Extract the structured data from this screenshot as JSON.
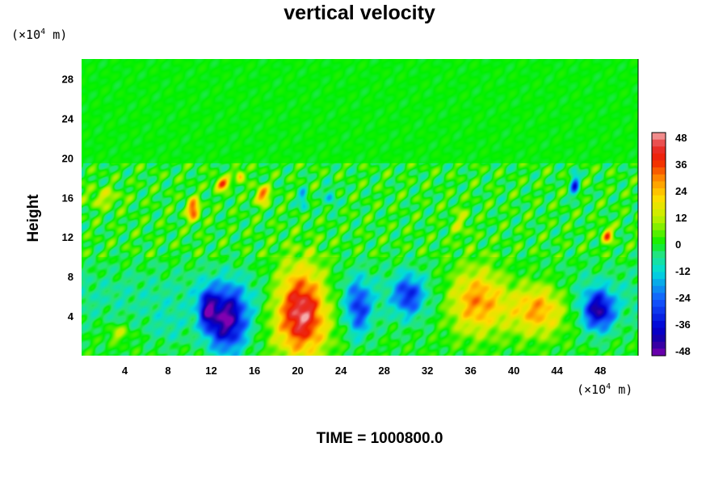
{
  "chart_data": {
    "type": "heatmap",
    "title": "vertical velocity",
    "ylabel": "Height",
    "x_unit": "m",
    "x_unit_base": "(×10",
    "x_unit_exp": "4",
    "y_unit": "m",
    "y_unit_base": "(×10",
    "y_unit_exp": "4",
    "footer": "TIME = 1000800.0",
    "xlim": [
      0,
      51.5
    ],
    "ylim": [
      0,
      30
    ],
    "x_ticks": [
      "4",
      "8",
      "12",
      "16",
      "20",
      "24",
      "28",
      "32",
      "36",
      "40",
      "44",
      "48"
    ],
    "y_ticks": [
      "4",
      "8",
      "12",
      "16",
      "20",
      "24",
      "28"
    ],
    "colorbar": {
      "range": [
        -48,
        48
      ],
      "labels": [
        "48",
        "36",
        "24",
        "12",
        "0",
        "-12",
        "-24",
        "-36",
        "-48"
      ]
    },
    "features": [
      {
        "x": 20.3,
        "y": 4.6,
        "sx": 2.4,
        "sy": 4.3,
        "v": 50
      },
      {
        "x": 13.4,
        "y": 3.6,
        "sx": 1.8,
        "sy": 3.2,
        "v": -44
      },
      {
        "x": 11.6,
        "y": 4.8,
        "sx": 0.8,
        "sy": 2.0,
        "v": -28
      },
      {
        "x": 25.6,
        "y": 4.8,
        "sx": 1.1,
        "sy": 2.8,
        "v": -25
      },
      {
        "x": 30.2,
        "y": 6.2,
        "sx": 1.3,
        "sy": 2.0,
        "v": -26
      },
      {
        "x": 36.6,
        "y": 5.6,
        "sx": 2.8,
        "sy": 3.2,
        "v": 33
      },
      {
        "x": 42.2,
        "y": 4.8,
        "sx": 2.6,
        "sy": 2.6,
        "v": 30
      },
      {
        "x": 47.8,
        "y": 4.6,
        "sx": 1.4,
        "sy": 2.0,
        "v": -38
      },
      {
        "x": 10.3,
        "y": 14.8,
        "sx": 0.6,
        "sy": 1.1,
        "v": 34
      },
      {
        "x": 13.0,
        "y": 17.4,
        "sx": 0.7,
        "sy": 0.6,
        "v": 34
      },
      {
        "x": 16.7,
        "y": 16.3,
        "sx": 0.7,
        "sy": 0.9,
        "v": 29
      },
      {
        "x": 14.6,
        "y": 18.3,
        "sx": 0.4,
        "sy": 0.6,
        "v": 26
      },
      {
        "x": 48.6,
        "y": 12.2,
        "sx": 0.5,
        "sy": 0.8,
        "v": 30
      },
      {
        "x": 45.6,
        "y": 17.3,
        "sx": 0.4,
        "sy": 1.2,
        "v": -26
      },
      {
        "x": 20.5,
        "y": 15.8,
        "sx": 0.4,
        "sy": 1.0,
        "v": -18
      },
      {
        "x": 23.0,
        "y": 16.0,
        "sx": 0.5,
        "sy": 1.2,
        "v": -14
      },
      {
        "x": 3.4,
        "y": 2.3,
        "sx": 1.0,
        "sy": 0.8,
        "v": 12
      },
      {
        "x": 8.0,
        "y": 2.8,
        "sx": 2.0,
        "sy": 2.0,
        "v": -6
      },
      {
        "x": 2.0,
        "y": 16.0,
        "sx": 1.6,
        "sy": 1.0,
        "v": 12
      },
      {
        "x": 35.0,
        "y": 13.5,
        "sx": 0.8,
        "sy": 1.6,
        "v": 10
      }
    ]
  }
}
